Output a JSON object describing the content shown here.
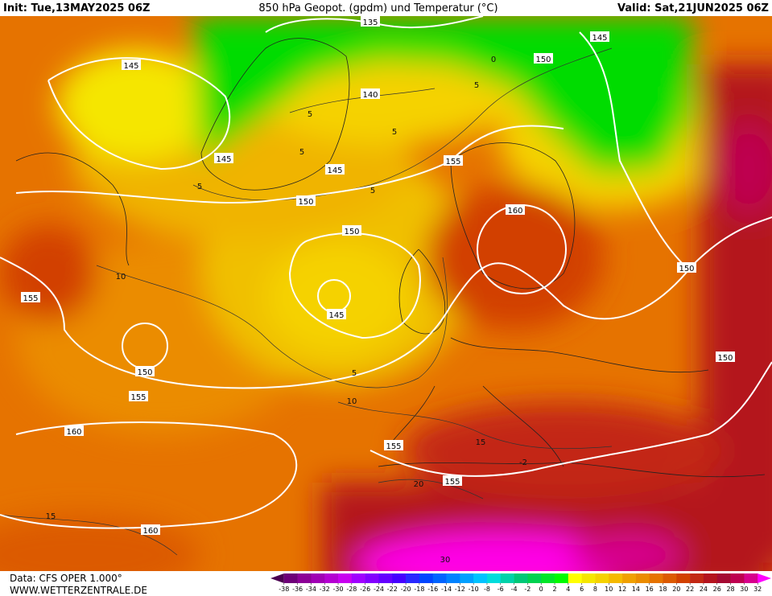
{
  "header": {
    "init": "Init: Tue,13MAY2025 06Z",
    "title": "850 hPa Geopot. (gpdm) und Temperatur (°C)",
    "valid": "Valid: Sat,21JUN2025 06Z"
  },
  "footer": {
    "data": "Data: CFS OPER 1.000°",
    "site": "WWW.WETTERZENTRALE.DE"
  },
  "geopotential_labels": [
    "135",
    "145",
    "145",
    "150",
    "140",
    "145",
    "145",
    "155",
    "150",
    "150",
    "160",
    "145",
    "155",
    "150",
    "155",
    "150",
    "150",
    "160",
    "155",
    "155",
    "160"
  ],
  "temperature_labels": [
    "0",
    "5",
    "5",
    "5",
    "5",
    "5",
    "5",
    "10",
    "5",
    "10",
    "15",
    "-2",
    "20",
    "15",
    "30"
  ],
  "legend": {
    "ticks": [
      -38,
      -36,
      -34,
      -32,
      -30,
      -28,
      -26,
      -24,
      -22,
      -20,
      -18,
      -16,
      -14,
      -12,
      -10,
      -8,
      -6,
      -4,
      -2,
      0,
      2,
      4,
      6,
      8,
      10,
      12,
      14,
      16,
      18,
      20,
      22,
      24,
      26,
      28,
      30,
      32
    ],
    "colors": [
      "#4b0050",
      "#6e0078",
      "#8c0096",
      "#a000b4",
      "#b400d2",
      "#c800f0",
      "#a000ff",
      "#8200ff",
      "#6400ff",
      "#4600ff",
      "#2828ff",
      "#0046ff",
      "#0064ff",
      "#0082ff",
      "#00a0ff",
      "#00c3ff",
      "#00dcdc",
      "#00d2aa",
      "#00c878",
      "#00d250",
      "#00e628",
      "#00fa00",
      "#ffff00",
      "#f5e600",
      "#f5d200",
      "#f5b900",
      "#f0a000",
      "#eb8c00",
      "#e67300",
      "#dc5a00",
      "#d24100",
      "#c32814",
      "#b4141e",
      "#a50a32",
      "#be0050",
      "#d7008c",
      "#ff00ff"
    ]
  }
}
